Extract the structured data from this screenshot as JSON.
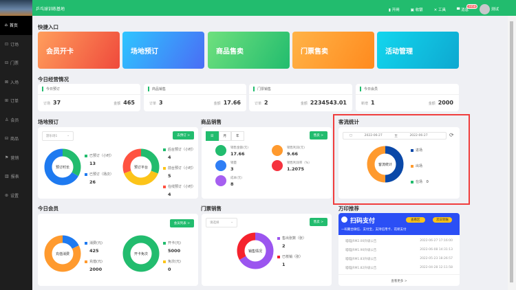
{
  "header": {
    "title": "乒乓球训练基地",
    "actions": [
      {
        "icon": "door-icon",
        "label": "开闸"
      },
      {
        "icon": "cashier-icon",
        "label": "收银"
      },
      {
        "icon": "tools-icon",
        "label": "工具"
      },
      {
        "icon": "message-icon",
        "label": "消息",
        "badge": "2058"
      }
    ],
    "user": "测试"
  },
  "sidebar": {
    "items": [
      "首页",
      "订场",
      "门票",
      "入场",
      "订单",
      "会员",
      "商品",
      "营销",
      "报表",
      "设置"
    ],
    "active": 0
  },
  "quick": {
    "title": "快捷入口",
    "items": [
      "会员开卡",
      "场地预订",
      "商品售卖",
      "门票售卖",
      "活动管理"
    ]
  },
  "today": {
    "title": "今日经营情况",
    "cards": [
      {
        "title": "今日预订",
        "l_label": "订场",
        "l_value": "37",
        "r_label": "金额",
        "r_value": "465"
      },
      {
        "title": "商品销售",
        "l_label": "订单",
        "l_value": "3",
        "r_label": "金额",
        "r_value": "17.66"
      },
      {
        "title": "门票销售",
        "l_label": "订单",
        "l_value": "2",
        "r_label": "金额",
        "r_value": "2234543.01"
      },
      {
        "title": "今日会员",
        "l_label": "新增",
        "l_value": "1",
        "r_label": "金额",
        "r_value": "2000"
      }
    ]
  },
  "venue": {
    "title": "场地预订",
    "select": "游乐场1",
    "button": "去预订 >",
    "donut1": {
      "label": "预订时长",
      "segments": [
        {
          "name": "已预订（小时）",
          "value": 13,
          "color": "#22bc6e"
        },
        {
          "name": "已预订（场次）",
          "value": 26,
          "color": "#1e7af0"
        }
      ]
    },
    "donut2": {
      "label": "预订平台",
      "segments": [
        {
          "name": "后台预订（小时）",
          "value": 4,
          "color": "#22bc6e"
        },
        {
          "name": "前台预订（小时）",
          "value": 5,
          "color": "#fcc419"
        },
        {
          "name": "在线预订（小时）",
          "value": 4,
          "color": "#ff5240"
        }
      ]
    }
  },
  "goods": {
    "title": "商品销售",
    "tabs": [
      "日",
      "月",
      "年"
    ],
    "active_tab": 0,
    "button": "售卖 >",
    "items": [
      {
        "label": "销售金额(元)",
        "value": "17.66",
        "color": "#22bc6e"
      },
      {
        "label": "销售利润(元)",
        "value": "9.66",
        "color": "#ff9a2e"
      },
      {
        "label": "销量",
        "value": "3",
        "color": "#2f7ef5"
      },
      {
        "label": "销售利润率（%）",
        "value": "1.2075",
        "color": "#f5333f"
      },
      {
        "label": "成本(元)",
        "value": "8",
        "color": "#a65ff0"
      }
    ]
  },
  "traffic": {
    "title": "客流统计",
    "date_from": "2022-06-27",
    "to": "至",
    "date_to": "2022-06-27",
    "donut": {
      "label": "客流统计",
      "segments": [
        {
          "name": "进场",
          "value": 0.5,
          "color": "#0a48a8"
        },
        {
          "name": "出场",
          "value": 0.5,
          "color": "#ff9a2e"
        },
        {
          "name": "在场",
          "value": 0,
          "color": "#22bc6e",
          "display": "0"
        }
      ]
    }
  },
  "members": {
    "title": "今日会员",
    "button": "会员列表 >",
    "donut1": {
      "label": "充值消费",
      "segments": [
        {
          "name": "消费(元)",
          "value": 425,
          "color": "#1e7af0"
        },
        {
          "name": "充值(元)",
          "value": 2000,
          "color": "#ff9a2e"
        }
      ]
    },
    "donut2": {
      "label": "开卡免次",
      "segments": [
        {
          "name": "开卡(元)",
          "value": 5000,
          "color": "#22bc6e"
        },
        {
          "name": "免次(元)",
          "value": 0,
          "color": "#fcc419"
        }
      ]
    }
  },
  "tickets": {
    "title": "门票销售",
    "select": "请选择",
    "button": "售卖 >",
    "donut": {
      "label": "销售情况",
      "segments": [
        {
          "name": "售出张数（张）",
          "value": 2,
          "color": "#9b55ef"
        },
        {
          "name": "已核销（张）",
          "value": 1,
          "color": "#f5222d"
        }
      ]
    }
  },
  "promo": {
    "title": "万印推荐",
    "banner_title": "扫码支付",
    "banner_sub": "一码聚合微信、支付宝，支持信用卡、花呗支付",
    "btn1": "查看区",
    "btn2": "次日到账",
    "banner_color": "#2b4ff5",
    "news": [
      {
        "t": "喵喵JRM2.00升级公告",
        "d": "2022-06-27 17:16:00"
      },
      {
        "t": "喵喵JRM1.90升级公告",
        "d": "2022-06-08 14:31:13"
      },
      {
        "t": "喵喵JRM1.83升级公告",
        "d": "2022-05-23 18:26:57"
      },
      {
        "t": "喵喵JRM1.82升级公告",
        "d": "2022-04-28 12:11:58"
      }
    ],
    "more": "查看更多 >"
  }
}
